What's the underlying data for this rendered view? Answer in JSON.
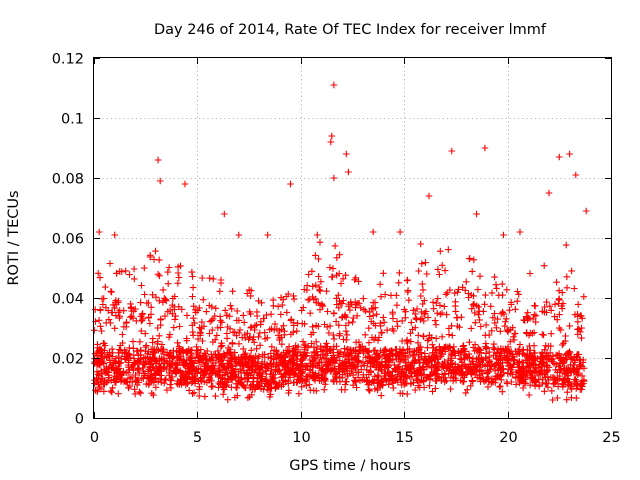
{
  "chart_data": {
    "type": "scatter",
    "title": "Day 246 of 2014, Rate Of TEC Index for receiver lmmf",
    "xlabel": "GPS time / hours",
    "ylabel": "ROTI / TECUs",
    "xlim": [
      0,
      25
    ],
    "ylim": [
      0,
      0.12
    ],
    "xticks": [
      0,
      5,
      10,
      15,
      20,
      25
    ],
    "xtick_labels": [
      "0",
      "5",
      "10",
      "15",
      "20",
      "25"
    ],
    "yticks": [
      0,
      0.02,
      0.04,
      0.06,
      0.08,
      0.1,
      0.12
    ],
    "ytick_labels": [
      "0",
      "0.02",
      "0.04",
      "0.06",
      "0.08",
      "0.1",
      "0.12"
    ],
    "grid": true,
    "marker": "plus",
    "series": [
      {
        "name": "ROTI",
        "color": "#ff0000",
        "notable_points": [
          [
            11.6,
            0.111
          ],
          [
            11.5,
            0.094
          ],
          [
            11.45,
            0.092
          ],
          [
            17.3,
            0.089
          ],
          [
            18.9,
            0.09
          ],
          [
            23.0,
            0.088
          ],
          [
            22.5,
            0.087
          ],
          [
            3.1,
            0.086
          ],
          [
            12.2,
            0.088
          ],
          [
            9.5,
            0.078
          ],
          [
            4.4,
            0.078
          ],
          [
            3.2,
            0.079
          ],
          [
            12.3,
            0.082
          ],
          [
            11.6,
            0.08
          ],
          [
            23.3,
            0.081
          ],
          [
            16.2,
            0.074
          ],
          [
            22.0,
            0.075
          ],
          [
            0.25,
            0.062
          ],
          [
            1.0,
            0.061
          ],
          [
            7.0,
            0.061
          ],
          [
            10.8,
            0.061
          ],
          [
            13.5,
            0.062
          ],
          [
            20.6,
            0.062
          ],
          [
            6.3,
            0.068
          ],
          [
            8.4,
            0.061
          ],
          [
            23.8,
            0.069
          ],
          [
            18.5,
            0.068
          ],
          [
            14.8,
            0.062
          ],
          [
            19.8,
            0.061
          ],
          [
            15.8,
            0.058
          ]
        ],
        "envelope_hours": [
          0,
          1,
          2,
          3,
          4,
          5,
          6,
          7,
          8,
          9,
          10,
          11,
          12,
          13,
          14,
          15,
          16,
          17,
          18,
          19,
          20,
          21,
          22,
          23,
          23.7
        ],
        "typical_upper": [
          0.035,
          0.04,
          0.037,
          0.043,
          0.042,
          0.036,
          0.035,
          0.034,
          0.03,
          0.031,
          0.036,
          0.045,
          0.042,
          0.037,
          0.036,
          0.037,
          0.039,
          0.042,
          0.045,
          0.038,
          0.036,
          0.036,
          0.041,
          0.045,
          0.033
        ],
        "typical_lower": [
          0.007,
          0.007,
          0.007,
          0.007,
          0.007,
          0.007,
          0.006,
          0.006,
          0.005,
          0.006,
          0.008,
          0.008,
          0.008,
          0.008,
          0.007,
          0.007,
          0.008,
          0.008,
          0.008,
          0.008,
          0.007,
          0.007,
          0.006,
          0.006,
          0.005
        ]
      }
    ]
  }
}
